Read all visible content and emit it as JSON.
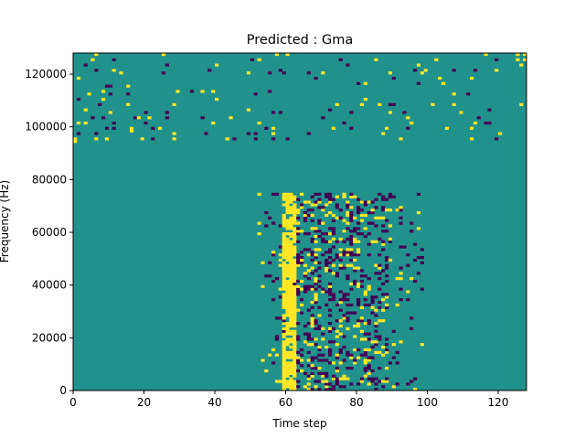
{
  "chart_data": {
    "type": "heatmap",
    "title": "Predicted : Gma",
    "xlabel": "Time step",
    "ylabel": "Frequency (Hz)",
    "xlim": [
      0,
      128
    ],
    "ylim": [
      0,
      128000
    ],
    "xticks": [
      0,
      20,
      40,
      60,
      80,
      100,
      120
    ],
    "xtick_labels": [
      "0",
      "20",
      "40",
      "60",
      "80",
      "100",
      "120"
    ],
    "yticks": [
      0,
      20000,
      40000,
      60000,
      80000,
      100000,
      120000
    ],
    "ytick_labels": [
      "0",
      "20000",
      "40000",
      "60000",
      "80000",
      "100000",
      "120000"
    ],
    "rows": 128,
    "background_value": 0,
    "colormap": {
      "-1": "#440154",
      "0": "#21918c",
      "1": "#fde725"
    },
    "cells": [
      [
        6,
        127,
        1
      ],
      [
        25,
        127,
        1
      ],
      [
        57,
        127,
        1
      ],
      [
        60,
        127,
        1
      ],
      [
        116,
        127,
        1
      ],
      [
        125,
        127,
        1
      ],
      [
        127,
        127,
        1
      ],
      [
        5,
        125,
        1
      ],
      [
        11,
        125,
        -1
      ],
      [
        50,
        125,
        -1
      ],
      [
        52,
        125,
        1
      ],
      [
        75,
        125,
        -1
      ],
      [
        85,
        125,
        1
      ],
      [
        102,
        125,
        1
      ],
      [
        119,
        125,
        -1
      ],
      [
        125,
        125,
        1
      ],
      [
        127,
        125,
        1
      ],
      [
        3,
        123,
        -1
      ],
      [
        26,
        123,
        -1
      ],
      [
        40,
        123,
        1
      ],
      [
        77,
        123,
        -1
      ],
      [
        97,
        123,
        1
      ],
      [
        126,
        123,
        1
      ],
      [
        6,
        121,
        -1
      ],
      [
        11,
        121,
        1
      ],
      [
        38,
        121,
        -1
      ],
      [
        58,
        121,
        -1
      ],
      [
        96,
        121,
        -1
      ],
      [
        99,
        121,
        1
      ],
      [
        107,
        121,
        -1
      ],
      [
        113,
        121,
        -1
      ],
      [
        119,
        121,
        1
      ],
      [
        13,
        120,
        1
      ],
      [
        25,
        120,
        -1
      ],
      [
        49,
        120,
        1
      ],
      [
        55,
        120,
        -1
      ],
      [
        59,
        120,
        -1
      ],
      [
        66,
        120,
        -1
      ],
      [
        70,
        120,
        1
      ],
      [
        89,
        120,
        1
      ],
      [
        98,
        120,
        1
      ],
      [
        1,
        118,
        1
      ],
      [
        68,
        118,
        -1
      ],
      [
        90,
        118,
        -1
      ],
      [
        103,
        118,
        1
      ],
      [
        112,
        118,
        1
      ],
      [
        80,
        116,
        -1
      ],
      [
        82,
        116,
        1
      ],
      [
        97,
        116,
        -1
      ],
      [
        104,
        116,
        1
      ],
      [
        9,
        115,
        -1
      ],
      [
        10,
        115,
        -1
      ],
      [
        15,
        115,
        1
      ],
      [
        8,
        113,
        1
      ],
      [
        29,
        113,
        1
      ],
      [
        33,
        113,
        -1
      ],
      [
        36,
        113,
        1
      ],
      [
        39,
        113,
        1
      ],
      [
        55,
        113,
        -1
      ],
      [
        4,
        112,
        1
      ],
      [
        10,
        112,
        -1
      ],
      [
        15,
        112,
        -1
      ],
      [
        51,
        112,
        -1
      ],
      [
        107,
        112,
        1
      ],
      [
        111,
        112,
        -1
      ],
      [
        1,
        110,
        -1
      ],
      [
        8,
        110,
        1
      ],
      [
        40,
        110,
        1
      ],
      [
        82,
        110,
        1
      ],
      [
        7,
        108,
        -1
      ],
      [
        15,
        108,
        1
      ],
      [
        28,
        108,
        1
      ],
      [
        74,
        108,
        1
      ],
      [
        81,
        108,
        1
      ],
      [
        86,
        108,
        1
      ],
      [
        89,
        108,
        -1
      ],
      [
        90,
        108,
        -1
      ],
      [
        101,
        108,
        1
      ],
      [
        107,
        108,
        1
      ],
      [
        126,
        108,
        1
      ],
      [
        3,
        106,
        1
      ],
      [
        49,
        106,
        1
      ],
      [
        72,
        106,
        -1
      ],
      [
        117,
        106,
        -1
      ],
      [
        10,
        105,
        1
      ],
      [
        20,
        105,
        -1
      ],
      [
        26,
        105,
        -1
      ],
      [
        56,
        105,
        -1
      ],
      [
        58,
        105,
        -1
      ],
      [
        78,
        105,
        -1
      ],
      [
        89,
        105,
        1
      ],
      [
        93,
        105,
        -1
      ],
      [
        109,
        105,
        1
      ],
      [
        5,
        103,
        -1
      ],
      [
        8,
        103,
        -1
      ],
      [
        17,
        103,
        -1
      ],
      [
        18,
        103,
        1
      ],
      [
        21,
        103,
        1
      ],
      [
        26,
        103,
        -1
      ],
      [
        36,
        103,
        -1
      ],
      [
        44,
        103,
        1
      ],
      [
        70,
        103,
        -1
      ],
      [
        94,
        103,
        1
      ],
      [
        114,
        103,
        -1
      ],
      [
        1,
        101,
        1
      ],
      [
        3,
        101,
        1
      ],
      [
        11,
        101,
        -1
      ],
      [
        20,
        101,
        -1
      ],
      [
        39,
        101,
        1
      ],
      [
        52,
        101,
        1
      ],
      [
        76,
        101,
        -1
      ],
      [
        95,
        101,
        1
      ],
      [
        113,
        101,
        1
      ],
      [
        116,
        101,
        -1
      ],
      [
        117,
        101,
        -1
      ],
      [
        9,
        99,
        -1
      ],
      [
        11,
        99,
        -1
      ],
      [
        16,
        99,
        1
      ],
      [
        16,
        98,
        1
      ],
      [
        22,
        99,
        -1
      ],
      [
        24,
        99,
        1
      ],
      [
        54,
        99,
        -1
      ],
      [
        56,
        99,
        1
      ],
      [
        73,
        99,
        1
      ],
      [
        78,
        99,
        -1
      ],
      [
        88,
        99,
        1
      ],
      [
        94,
        99,
        -1
      ],
      [
        105,
        99,
        1
      ],
      [
        112,
        99,
        1
      ],
      [
        1,
        97,
        -1
      ],
      [
        6,
        97,
        -1
      ],
      [
        28,
        97,
        1
      ],
      [
        37,
        97,
        -1
      ],
      [
        49,
        97,
        -1
      ],
      [
        51,
        97,
        -1
      ],
      [
        56,
        97,
        1
      ],
      [
        66,
        97,
        -1
      ],
      [
        87,
        97,
        1
      ],
      [
        120,
        97,
        1
      ],
      [
        0,
        95,
        1
      ],
      [
        0,
        94,
        1
      ],
      [
        6,
        95,
        1
      ],
      [
        9,
        95,
        1
      ],
      [
        19,
        95,
        1
      ],
      [
        22,
        95,
        -1
      ],
      [
        28,
        95,
        1
      ],
      [
        43,
        95,
        1
      ],
      [
        45,
        95,
        -1
      ],
      [
        51,
        95,
        -1
      ],
      [
        56,
        95,
        -1
      ],
      [
        60,
        95,
        -1
      ],
      [
        92,
        95,
        1
      ],
      [
        112,
        95,
        1
      ],
      [
        119,
        95,
        -1
      ]
    ]
  }
}
